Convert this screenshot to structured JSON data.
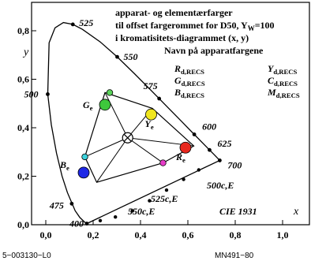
{
  "chart_data": {
    "type": "scatter",
    "title_lines": [
      "apparat- og elementærfarger",
      "til offset fargerommet for D50, Y",
      "i kromatisitets-diagrammet (x, y)",
      "Navn på apparatfargene"
    ],
    "title_yw": "W",
    "title_yw_value": "=100",
    "xlabel": "x",
    "ylabel": "y",
    "xlim": [
      0.0,
      1.1
    ],
    "ylim": [
      0.0,
      0.85
    ],
    "x_ticks": [
      0.0,
      0.2,
      0.4,
      0.6,
      0.8,
      1.0
    ],
    "x_tick_labels": [
      "0,0",
      "0,2",
      "0,4",
      "0,6",
      "0,8",
      "1,0"
    ],
    "y_ticks": [
      0.0,
      0.2,
      0.4,
      0.6,
      0.8
    ],
    "y_tick_labels": [
      "0,0",
      "0,2",
      "0,4",
      "0,6",
      "0,8"
    ],
    "spectral_locus": [
      [
        0.1738,
        0.005
      ],
      [
        0.1666,
        0.0089
      ],
      [
        0.144,
        0.0297
      ],
      [
        0.1241,
        0.0578
      ],
      [
        0.0913,
        0.1327
      ],
      [
        0.0687,
        0.2007
      ],
      [
        0.0454,
        0.295
      ],
      [
        0.0235,
        0.4127
      ],
      [
        0.0082,
        0.5384
      ],
      [
        0.0139,
        0.7502
      ],
      [
        0.0389,
        0.812
      ],
      [
        0.0743,
        0.8338
      ],
      [
        0.1142,
        0.8262
      ],
      [
        0.1547,
        0.8059
      ],
      [
        0.2296,
        0.7543
      ],
      [
        0.3016,
        0.6923
      ],
      [
        0.3731,
        0.6245
      ],
      [
        0.4441,
        0.5547
      ],
      [
        0.5125,
        0.4866
      ],
      [
        0.5752,
        0.4242
      ],
      [
        0.627,
        0.3725
      ],
      [
        0.6658,
        0.334
      ],
      [
        0.6915,
        0.3083
      ],
      [
        0.7079,
        0.292
      ],
      [
        0.7347,
        0.2653
      ]
    ],
    "locus_markers": [
      {
        "label": "400",
        "x": 0.1733,
        "y": 0.0048
      },
      {
        "label": "475",
        "x": 0.1096,
        "y": 0.0868
      },
      {
        "label": "500",
        "x": 0.0082,
        "y": 0.5384
      },
      {
        "label": "525",
        "x": 0.1142,
        "y": 0.8262
      },
      {
        "label": "550",
        "x": 0.3016,
        "y": 0.6923
      },
      {
        "label": "575",
        "x": 0.4788,
        "y": 0.5202
      },
      {
        "label": "600",
        "x": 0.627,
        "y": 0.3725
      },
      {
        "label": "625",
        "x": 0.6915,
        "y": 0.3083
      },
      {
        "label": "700",
        "x": 0.7347,
        "y": 0.2653
      }
    ],
    "purple_line_markers": [
      {
        "x": 0.646,
        "y": 0.226
      },
      {
        "x": 0.582,
        "y": 0.187
      },
      {
        "x": 0.51,
        "y": 0.143
      },
      {
        "x": 0.438,
        "y": 0.099
      },
      {
        "x": 0.366,
        "y": 0.057
      },
      {
        "x": 0.294,
        "y": 0.032
      },
      {
        "x": 0.23,
        "y": 0.017
      }
    ],
    "purple_labels": [
      "500c,E",
      "525c,E",
      "550c,E"
    ],
    "hexagon": [
      {
        "name": "R",
        "x": 0.625,
        "y": 0.325
      },
      {
        "name": "Y",
        "x": 0.45,
        "y": 0.48
      },
      {
        "name": "G",
        "x": 0.25,
        "y": 0.545
      },
      {
        "name": "C",
        "x": 0.165,
        "y": 0.28
      },
      {
        "name": "B",
        "x": 0.215,
        "y": 0.175
      },
      {
        "name": "M",
        "x": 0.495,
        "y": 0.255
      }
    ],
    "white_point": {
      "x": 0.3457,
      "y": 0.3585
    },
    "points": [
      {
        "label": "R",
        "sub": "e",
        "x": 0.59,
        "y": 0.318,
        "color": "#e8281e",
        "size": "large"
      },
      {
        "label": "Y",
        "sub": "e",
        "x": 0.445,
        "y": 0.455,
        "color": "#f0e61e",
        "size": "large"
      },
      {
        "label": "G",
        "sub": "e",
        "x": 0.25,
        "y": 0.495,
        "color": "#3ec83c",
        "size": "large"
      },
      {
        "label": "B",
        "sub": "e",
        "x": 0.16,
        "y": 0.215,
        "color": "#1e28e6",
        "size": "large"
      },
      {
        "label": "",
        "sub": "",
        "x": 0.495,
        "y": 0.255,
        "color": "#e63cc8",
        "size": "small"
      },
      {
        "label": "",
        "sub": "",
        "x": 0.165,
        "y": 0.28,
        "color": "#3cd2dc",
        "size": "small"
      },
      {
        "label": "",
        "sub": "",
        "x": 0.27,
        "y": 0.545,
        "color": "#5ad25a",
        "size": "small"
      }
    ],
    "legend": [
      {
        "name": "R",
        "sub": "d,RECS"
      },
      {
        "name": "G",
        "sub": "d,RECS"
      },
      {
        "name": "B",
        "sub": "d,RECS"
      },
      {
        "name": "Y",
        "sub": "d,RECS"
      },
      {
        "name": "C",
        "sub": "d,RECS"
      },
      {
        "name": "M",
        "sub": "d,RECS"
      }
    ],
    "annotation_cie": "CIE 1931",
    "grid": false
  },
  "footer": {
    "left": "5−003130−L0",
    "right": "MN491−80"
  }
}
